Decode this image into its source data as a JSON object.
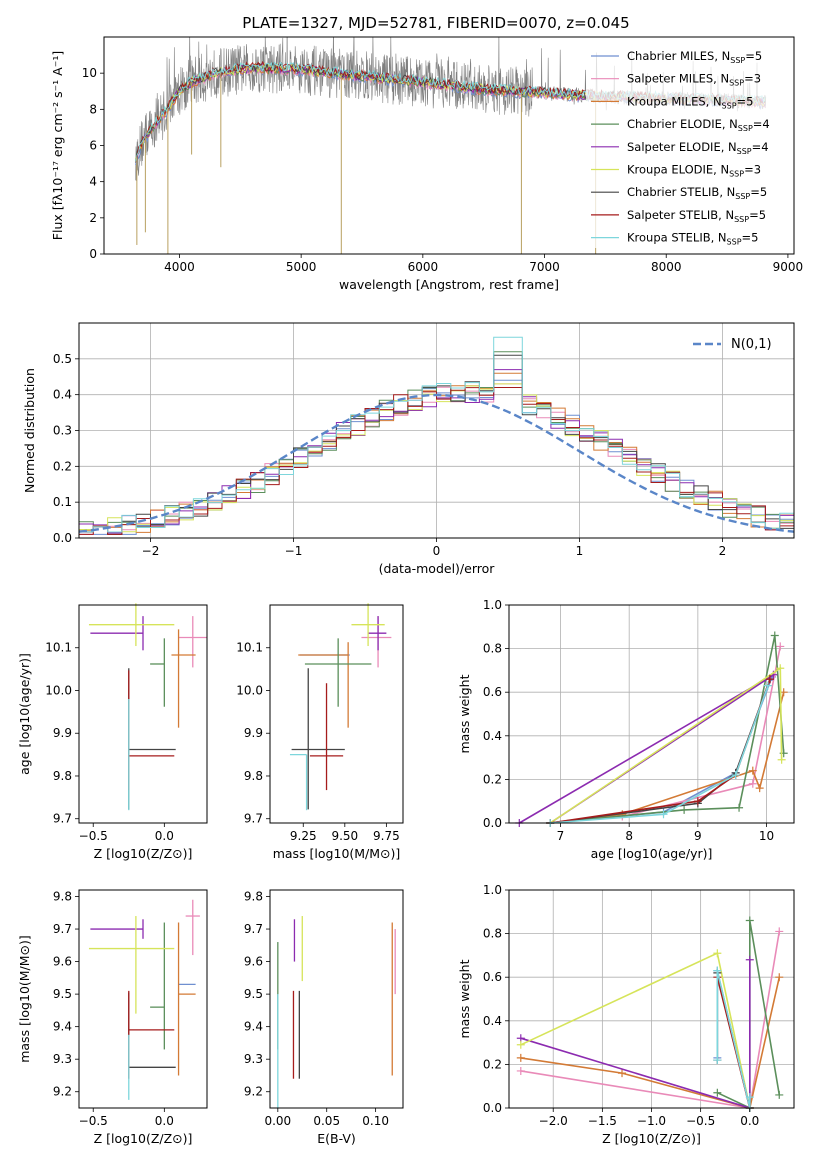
{
  "title": "PLATE=1327, MJD=52781, FIBERID=0070, z=0.045",
  "models": [
    {
      "name": "Chabrier MILES",
      "nssp": "5",
      "color": "#6f8fd0"
    },
    {
      "name": "Salpeter MILES",
      "nssp": "3",
      "color": "#e98ab8"
    },
    {
      "name": "Kroupa MILES",
      "nssp": "5",
      "color": "#d37a35"
    },
    {
      "name": "Chabrier ELODIE",
      "nssp": "4",
      "color": "#5b8f5b"
    },
    {
      "name": "Salpeter ELODIE",
      "nssp": "4",
      "color": "#8c2bb0"
    },
    {
      "name": "Kroupa ELODIE",
      "nssp": "3",
      "color": "#d6e45a"
    },
    {
      "name": "Chabrier STELIB",
      "nssp": "5",
      "color": "#444444"
    },
    {
      "name": "Salpeter STELIB",
      "nssp": "5",
      "color": "#a51c1c"
    },
    {
      "name": "Kroupa STELIB",
      "nssp": "5",
      "color": "#7dd6dc"
    }
  ],
  "chart_data": [
    {
      "id": "spectrum",
      "type": "line",
      "xlabel": "wavelength [Angstrom, rest frame]",
      "ylabel": "Flux [fλ10⁻¹⁷ erg cm⁻² s⁻¹ A⁻¹]",
      "xlim": [
        3380,
        9050
      ],
      "ylim": [
        0,
        12
      ],
      "xticks": [
        4000,
        5000,
        6000,
        7000,
        8000,
        9000
      ],
      "yticks": [
        0,
        2,
        4,
        6,
        8,
        10
      ],
      "data_color": "#808080",
      "data_range": [
        3640,
        8820
      ],
      "continuum": [
        [
          3640,
          5.2
        ],
        [
          3700,
          6.3
        ],
        [
          3800,
          7.2
        ],
        [
          3900,
          8.0
        ],
        [
          4000,
          9.0
        ],
        [
          4100,
          9.5
        ],
        [
          4300,
          10.0
        ],
        [
          4600,
          10.3
        ],
        [
          5000,
          10.2
        ],
        [
          5400,
          9.9
        ],
        [
          6000,
          9.5
        ],
        [
          6500,
          9.1
        ],
        [
          7000,
          8.9
        ],
        [
          7500,
          8.7
        ],
        [
          8000,
          8.6
        ],
        [
          8500,
          8.5
        ],
        [
          8820,
          8.4
        ]
      ],
      "drops": [
        [
          3650,
          0.5
        ],
        [
          3720,
          1.2
        ],
        [
          3905,
          0
        ],
        [
          4100,
          5.5
        ],
        [
          4340,
          4.8
        ],
        [
          5330,
          0
        ],
        [
          6810,
          0
        ],
        [
          7420,
          0
        ]
      ]
    },
    {
      "id": "residuals",
      "type": "histogram",
      "xlabel": "(data-model)/error",
      "ylabel": "Normed distribution",
      "xlim": [
        -2.5,
        2.5
      ],
      "ylim": [
        0,
        0.6
      ],
      "xticks": [
        -2,
        -1,
        0,
        1,
        2
      ],
      "yticks": [
        0.0,
        0.1,
        0.2,
        0.3,
        0.4,
        0.5
      ],
      "grid": true,
      "legend": "N(0,1)",
      "legend_position": "top-right",
      "bin_width": 0.1,
      "peak_values": [
        0.44,
        0.43,
        0.46,
        0.52,
        0.47,
        0.43,
        0.51,
        0.42,
        0.56
      ],
      "normal_curve": {
        "mean": 0,
        "sigma": 1
      }
    },
    {
      "id": "age-vs-Z",
      "type": "errorbar",
      "xlabel": "Z [log10(Z/Z⊙)]",
      "ylabel": "age  [log10(age/yr)]",
      "xlim": [
        -0.6,
        0.3
      ],
      "ylim": [
        9.69,
        10.2
      ],
      "xticks": [
        -0.5,
        0.0
      ],
      "yticks": [
        9.7,
        9.8,
        9.9,
        10.0,
        10.1
      ],
      "points": [
        {
          "x": 0.1,
          "y": 10.083,
          "xerr": [
            0.0,
            0.0
          ],
          "yerr": [
            0.0,
            0.0
          ],
          "color": "#6f8fd0"
        },
        {
          "x": 0.2,
          "y": 10.124,
          "xerr": [
            0.1,
            0.1
          ],
          "yerr": [
            0.07,
            0.05
          ],
          "color": "#e98ab8"
        },
        {
          "x": 0.1,
          "y": 10.083,
          "xerr": [
            0.05,
            0.12
          ],
          "yerr": [
            0.17,
            0.06
          ],
          "color": "#d37a35"
        },
        {
          "x": 0.0,
          "y": 10.062,
          "xerr": [
            0.1,
            0.0
          ],
          "yerr": [
            0.1,
            0.06
          ],
          "color": "#5b8f5b"
        },
        {
          "x": -0.15,
          "y": 10.134,
          "xerr": [
            0.37,
            0.0
          ],
          "yerr": [
            0.04,
            0.04
          ],
          "color": "#8c2bb0"
        },
        {
          "x": -0.2,
          "y": 10.154,
          "xerr": [
            0.33,
            0.27
          ],
          "yerr": [
            0.05,
            0.05
          ],
          "color": "#d6e45a"
        },
        {
          "x": -0.25,
          "y": 9.862,
          "xerr": [
            0.0,
            0.33
          ],
          "yerr": [
            0.14,
            0.19
          ],
          "color": "#444444"
        },
        {
          "x": -0.25,
          "y": 9.847,
          "xerr": [
            0.0,
            0.32
          ],
          "yerr": [
            0.08,
            0.2
          ],
          "color": "#a51c1c"
        },
        {
          "x": -0.25,
          "y": 9.85,
          "xerr": [
            0.0,
            0.0
          ],
          "yerr": [
            0.13,
            0.13
          ],
          "color": "#7dd6dc"
        }
      ]
    },
    {
      "id": "age-vs-mass",
      "type": "errorbar",
      "xlabel": "mass [log10(M/M⊙)]",
      "ylabel": "",
      "xlim": [
        9.05,
        9.85
      ],
      "ylim": [
        9.69,
        10.2
      ],
      "xticks": [
        9.25,
        9.5,
        9.75
      ],
      "yticks": [
        9.7,
        9.8,
        9.9,
        10.0,
        10.1
      ],
      "points": [
        {
          "x": 9.53,
          "y": 10.083,
          "xerr": [
            0.3,
            0.0
          ],
          "yerr": [
            0.0,
            0.0
          ],
          "color": "#6f8fd0"
        },
        {
          "x": 9.7,
          "y": 10.124,
          "xerr": [
            0.1,
            0.08
          ],
          "yerr": [
            0.07,
            0.05
          ],
          "color": "#e98ab8"
        },
        {
          "x": 9.52,
          "y": 10.083,
          "xerr": [
            0.3,
            0.0
          ],
          "yerr": [
            0.17,
            0.03
          ],
          "color": "#d37a35"
        },
        {
          "x": 9.46,
          "y": 10.062,
          "xerr": [
            0.2,
            0.2
          ],
          "yerr": [
            0.1,
            0.06
          ],
          "color": "#5b8f5b"
        },
        {
          "x": 9.7,
          "y": 10.134,
          "xerr": [
            0.06,
            0.05
          ],
          "yerr": [
            0.04,
            0.04
          ],
          "color": "#8c2bb0"
        },
        {
          "x": 9.64,
          "y": 10.154,
          "xerr": [
            0.1,
            0.1
          ],
          "yerr": [
            0.05,
            0.05
          ],
          "color": "#d6e45a"
        },
        {
          "x": 9.28,
          "y": 9.862,
          "xerr": [
            0.1,
            0.22
          ],
          "yerr": [
            0.14,
            0.19
          ],
          "color": "#444444"
        },
        {
          "x": 9.39,
          "y": 9.847,
          "xerr": [
            0.1,
            0.1
          ],
          "yerr": [
            0.08,
            0.17
          ],
          "color": "#a51c1c"
        },
        {
          "x": 9.27,
          "y": 9.85,
          "xerr": [
            0.1,
            0.0
          ],
          "yerr": [
            0.13,
            0.0
          ],
          "color": "#7dd6dc"
        }
      ]
    },
    {
      "id": "mass-weight-vs-age",
      "type": "line",
      "xlabel": "age  [log10(age/yr)]",
      "ylabel": "mass weight",
      "xlim": [
        6.25,
        10.4
      ],
      "ylim": [
        0,
        1.0
      ],
      "xticks": [
        7,
        8,
        9,
        10
      ],
      "yticks": [
        0.0,
        0.2,
        0.4,
        0.6,
        0.8,
        1.0
      ],
      "grid": true,
      "series": [
        {
          "color": "#6f8fd0",
          "x": [
            6.85,
            8.5,
            9.55,
            10.08
          ],
          "y": [
            0.0,
            0.05,
            0.23,
            0.67
          ]
        },
        {
          "color": "#e98ab8",
          "x": [
            6.85,
            7.9,
            9.8,
            10.2
          ],
          "y": [
            0.0,
            0.03,
            0.18,
            0.81
          ]
        },
        {
          "color": "#d37a35",
          "x": [
            6.85,
            7.9,
            9.8,
            9.9,
            10.25
          ],
          "y": [
            0.0,
            0.04,
            0.24,
            0.16,
            0.6
          ]
        },
        {
          "color": "#5b8f5b",
          "x": [
            6.85,
            8.8,
            9.6,
            10.12,
            10.25
          ],
          "y": [
            0.0,
            0.06,
            0.07,
            0.86,
            0.32
          ]
        },
        {
          "color": "#8c2bb0",
          "x": [
            6.85,
            10.1,
            6.4
          ],
          "y": [
            0.0,
            0.68,
            0.0
          ]
        },
        {
          "color": "#d6e45a",
          "x": [
            6.85,
            10.2,
            10.22
          ],
          "y": [
            0.0,
            0.71,
            0.29
          ]
        },
        {
          "color": "#444444",
          "x": [
            6.85,
            9.0,
            9.55,
            10.05
          ],
          "y": [
            0.0,
            0.09,
            0.23,
            0.66
          ]
        },
        {
          "color": "#a51c1c",
          "x": [
            6.85,
            9.0,
            9.55,
            10.05
          ],
          "y": [
            0.0,
            0.1,
            0.22,
            0.66
          ]
        },
        {
          "color": "#7dd6dc",
          "x": [
            6.85,
            8.5,
            9.55,
            10.02
          ],
          "y": [
            0.0,
            0.04,
            0.22,
            0.63
          ]
        }
      ]
    },
    {
      "id": "mass-vs-Z",
      "type": "errorbar",
      "xlabel": "Z [log10(Z/Z⊙)]",
      "ylabel": "mass [log10(M/M⊙)]",
      "xlim": [
        -0.6,
        0.3
      ],
      "ylim": [
        9.15,
        9.82
      ],
      "xticks": [
        -0.5,
        0.0
      ],
      "yticks": [
        9.2,
        9.3,
        9.4,
        9.5,
        9.6,
        9.7,
        9.8
      ],
      "points": [
        {
          "x": 0.15,
          "y": 9.53,
          "xerr": [
            0.05,
            0.07
          ],
          "yerr": [
            0.0,
            0.0
          ],
          "color": "#6f8fd0"
        },
        {
          "x": 0.2,
          "y": 9.74,
          "xerr": [
            0.05,
            0.05
          ],
          "yerr": [
            0.12,
            0.05
          ],
          "color": "#e98ab8"
        },
        {
          "x": 0.1,
          "y": 9.5,
          "xerr": [
            0.0,
            0.12
          ],
          "yerr": [
            0.25,
            0.22
          ],
          "color": "#d37a35"
        },
        {
          "x": 0.0,
          "y": 9.46,
          "xerr": [
            0.1,
            0.0
          ],
          "yerr": [
            0.13,
            0.26
          ],
          "color": "#5b8f5b"
        },
        {
          "x": -0.15,
          "y": 9.7,
          "xerr": [
            0.37,
            0.0
          ],
          "yerr": [
            0.03,
            0.03
          ],
          "color": "#8c2bb0"
        },
        {
          "x": -0.2,
          "y": 9.64,
          "xerr": [
            0.33,
            0.27
          ],
          "yerr": [
            0.2,
            0.1
          ],
          "color": "#d6e45a"
        },
        {
          "x": -0.25,
          "y": 9.275,
          "xerr": [
            0.0,
            0.33
          ],
          "yerr": [
            0.0,
            0.23
          ],
          "color": "#444444"
        },
        {
          "x": -0.25,
          "y": 9.39,
          "xerr": [
            0.0,
            0.32
          ],
          "yerr": [
            0.15,
            0.12
          ],
          "color": "#a51c1c"
        },
        {
          "x": -0.25,
          "y": 9.275,
          "xerr": [
            0.0,
            0.0
          ],
          "yerr": [
            0.1,
            0.1
          ],
          "color": "#7dd6dc"
        }
      ]
    },
    {
      "id": "mass-vs-EBV",
      "type": "errorbar",
      "xlabel": "E(B-V)",
      "ylabel": "",
      "xlim": [
        -0.008,
        0.128
      ],
      "ylim": [
        9.15,
        9.82
      ],
      "xticks": [
        0.0,
        0.05,
        0.1
      ],
      "yticks": [
        9.2,
        9.3,
        9.4,
        9.5,
        9.6,
        9.7,
        9.8
      ],
      "points": [
        {
          "x": 0.12,
          "y": 9.62,
          "xerr": [
            0.0,
            0.0
          ],
          "yerr": [
            0.12,
            0.08
          ],
          "color": "#e98ab8"
        },
        {
          "x": 0.117,
          "y": 9.5,
          "xerr": [
            0.0,
            0.0
          ],
          "yerr": [
            0.25,
            0.22
          ],
          "color": "#d37a35"
        },
        {
          "x": 0.0,
          "y": 9.46,
          "xerr": [
            0.0,
            0.0
          ],
          "yerr": [
            0.13,
            0.2
          ],
          "color": "#5b8f5b"
        },
        {
          "x": 0.017,
          "y": 9.65,
          "xerr": [
            0.0,
            0.0
          ],
          "yerr": [
            0.05,
            0.08
          ],
          "color": "#8c2bb0"
        },
        {
          "x": 0.025,
          "y": 9.64,
          "xerr": [
            0.0,
            0.0
          ],
          "yerr": [
            0.1,
            0.1
          ],
          "color": "#d6e45a"
        },
        {
          "x": 0.022,
          "y": 9.39,
          "xerr": [
            0.0,
            0.0
          ],
          "yerr": [
            0.15,
            0.12
          ],
          "color": "#444444"
        },
        {
          "x": 0.016,
          "y": 9.39,
          "xerr": [
            0.0,
            0.0
          ],
          "yerr": [
            0.15,
            0.12
          ],
          "color": "#a51c1c"
        },
        {
          "x": 0.0,
          "y": 9.3,
          "xerr": [
            0.0,
            0.0
          ],
          "yerr": [
            0.15,
            0.2
          ],
          "color": "#7dd6dc"
        }
      ]
    },
    {
      "id": "mass-weight-vs-Z",
      "type": "line",
      "xlabel": "Z [log10(Z/Z⊙)]",
      "ylabel": "mass weight",
      "xlim": [
        -2.45,
        0.45
      ],
      "ylim": [
        0,
        1.0
      ],
      "xticks": [
        -2.0,
        -1.5,
        -1.0,
        -0.5,
        0.0
      ],
      "yticks": [
        0.0,
        0.2,
        0.4,
        0.6,
        0.8,
        1.0
      ],
      "grid": true,
      "series": [
        {
          "color": "#6f8fd0",
          "x": [
            -0.33,
            -0.33,
            0.0
          ],
          "y": [
            0.23,
            0.63,
            0.0
          ]
        },
        {
          "color": "#e98ab8",
          "x": [
            -2.33,
            0.0,
            0.3
          ],
          "y": [
            0.17,
            0.0,
            0.81
          ]
        },
        {
          "color": "#d37a35",
          "x": [
            -2.33,
            -1.3,
            0.0,
            0.3
          ],
          "y": [
            0.23,
            0.16,
            0.0,
            0.6
          ]
        },
        {
          "color": "#5b8f5b",
          "x": [
            -0.33,
            0.0,
            0.0,
            0.3
          ],
          "y": [
            0.07,
            0.0,
            0.86,
            0.06
          ]
        },
        {
          "color": "#8c2bb0",
          "x": [
            -2.33,
            0.0,
            0.0
          ],
          "y": [
            0.32,
            0.0,
            0.68
          ]
        },
        {
          "color": "#d6e45a",
          "x": [
            -2.33,
            -0.33,
            0.0
          ],
          "y": [
            0.29,
            0.71,
            0.0
          ]
        },
        {
          "color": "#444444",
          "x": [
            -0.33,
            -0.33,
            0.0
          ],
          "y": [
            0.22,
            0.62,
            0.0
          ]
        },
        {
          "color": "#a51c1c",
          "x": [
            -0.33,
            0.0
          ],
          "y": [
            0.6,
            0.0
          ]
        },
        {
          "color": "#7dd6dc",
          "x": [
            -0.33,
            -0.33,
            0.0,
            0.0
          ],
          "y": [
            0.22,
            0.63,
            0.0,
            0.05
          ]
        }
      ]
    }
  ]
}
